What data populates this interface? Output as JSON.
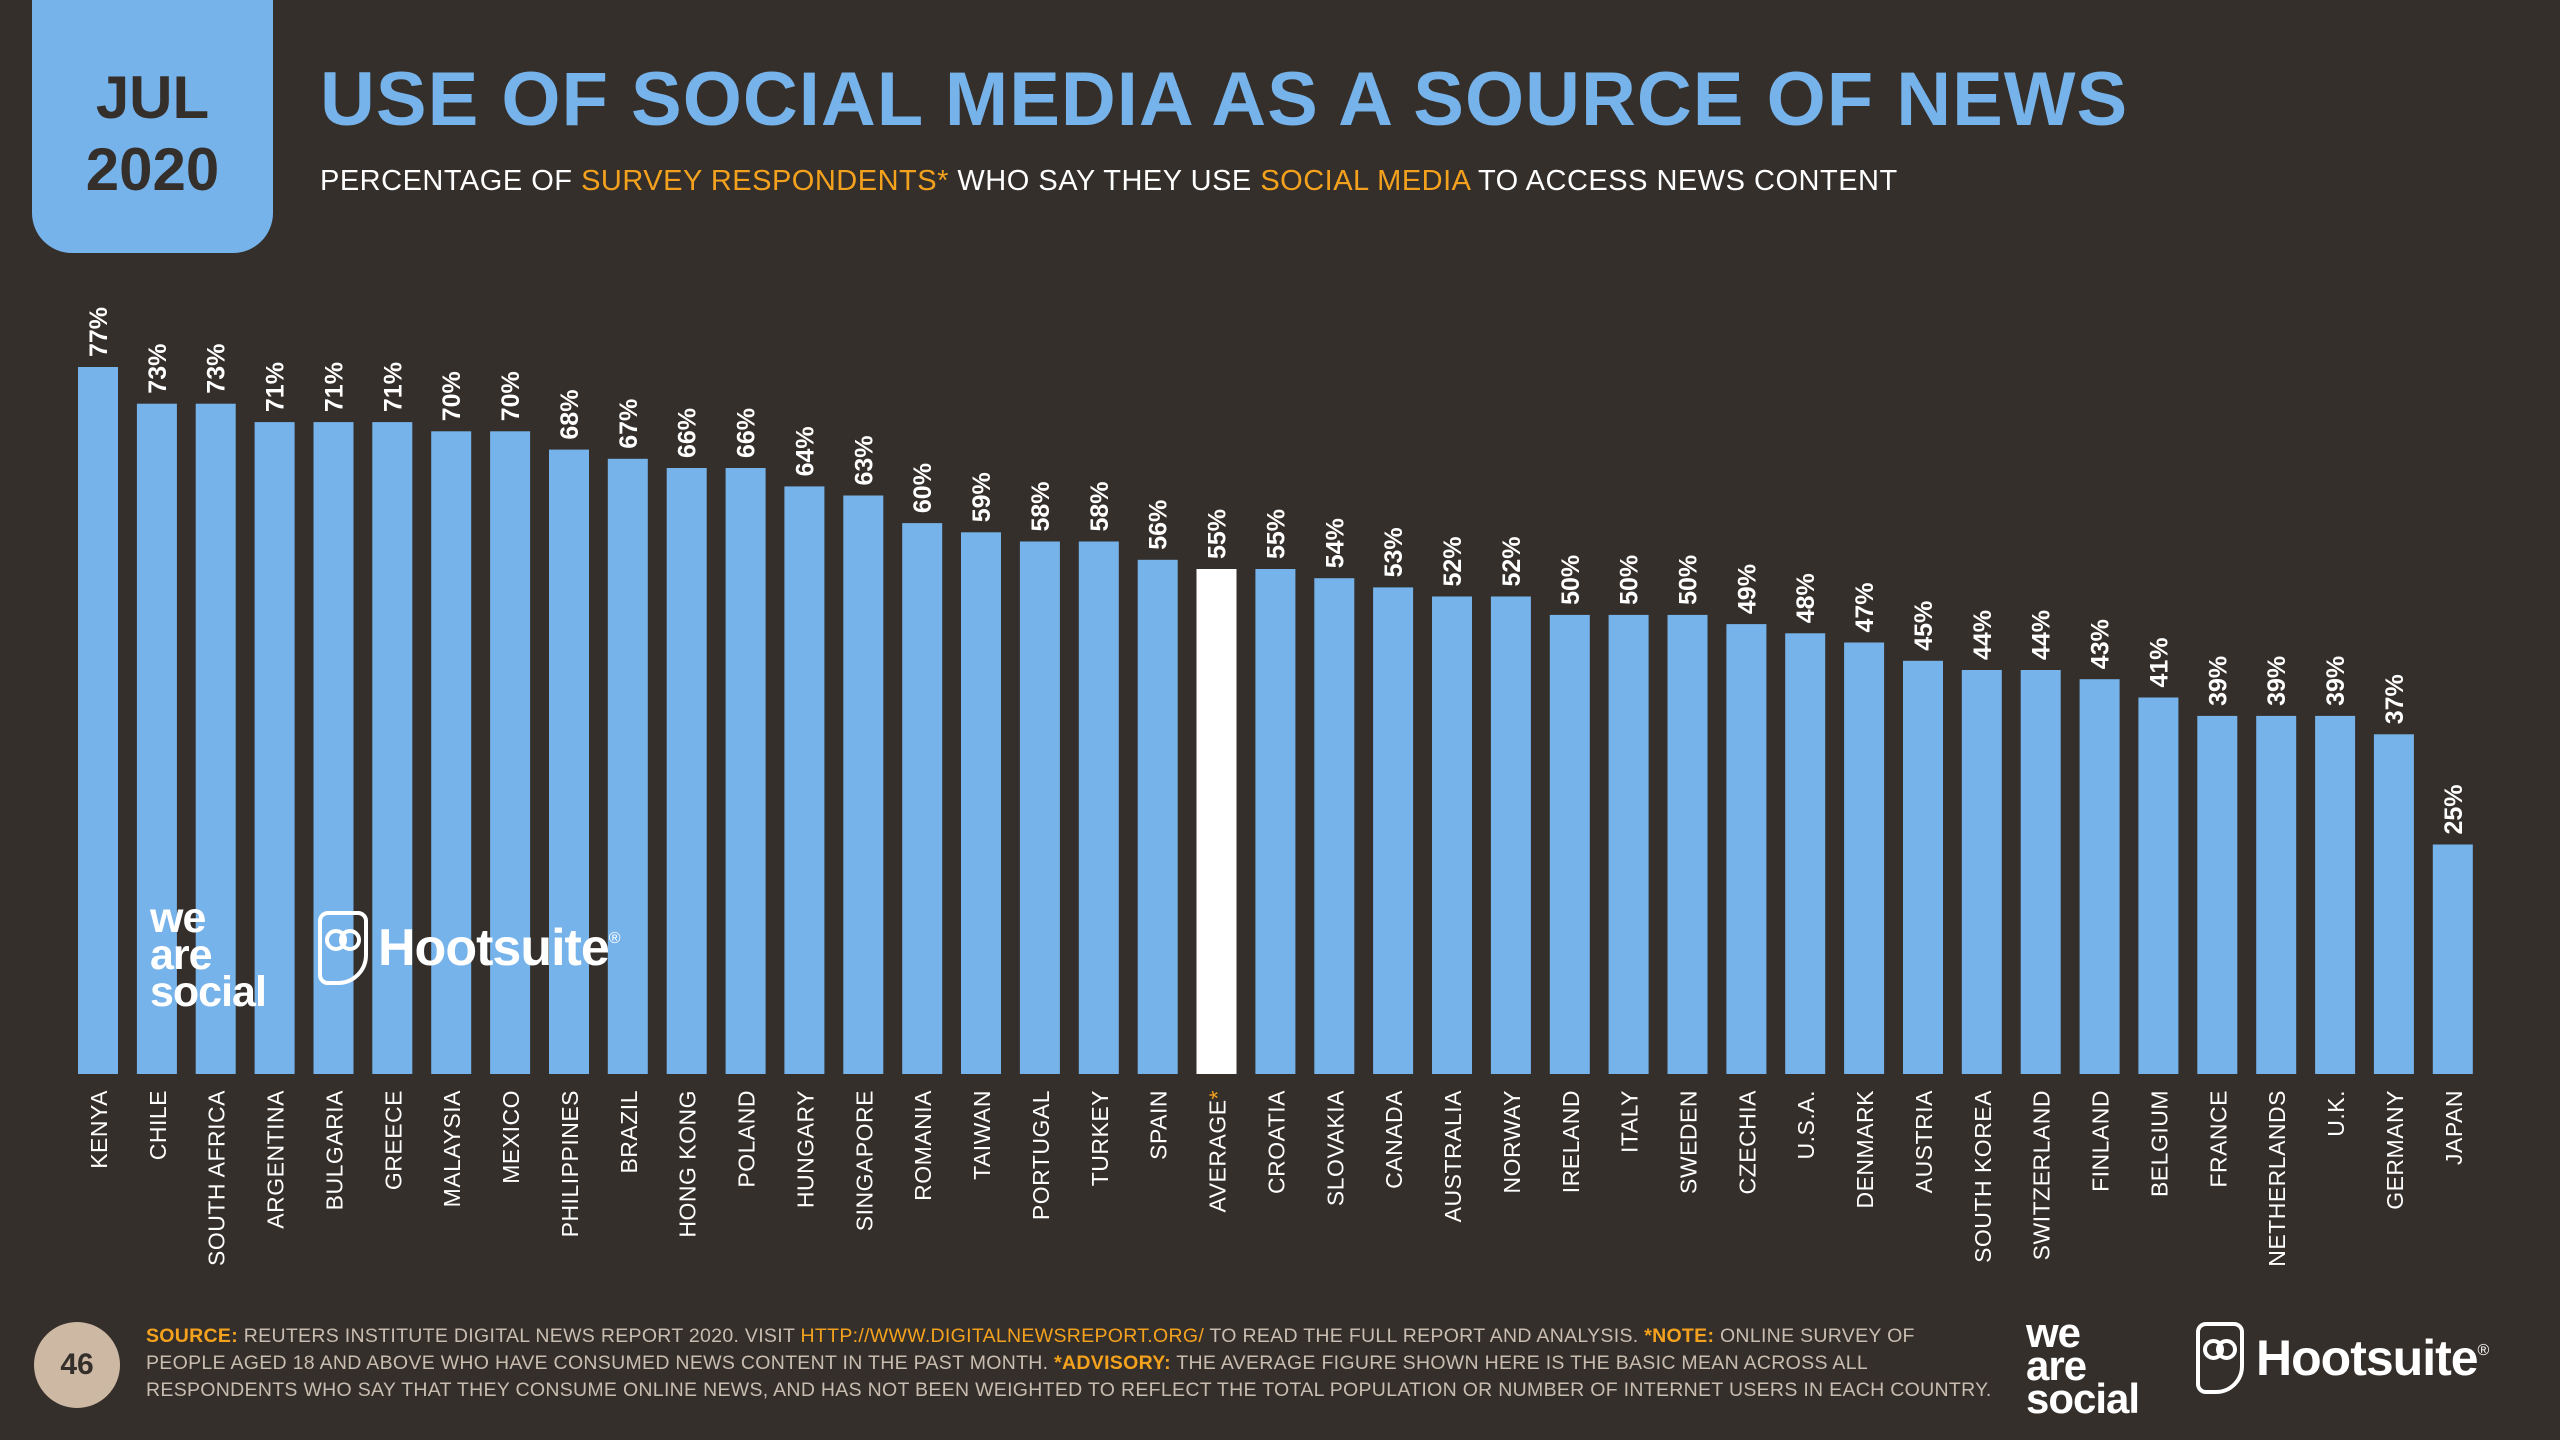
{
  "header": {
    "month": "JUL",
    "year": "2020",
    "title": "USE OF SOCIAL MEDIA AS A SOURCE OF NEWS",
    "subtitle_parts": [
      "PERCENTAGE OF ",
      "SURVEY RESPONDENTS*",
      " WHO SAY THEY USE ",
      "SOCIAL MEDIA",
      " TO ACCESS NEWS CONTENT"
    ]
  },
  "logos": {
    "we_are_social": [
      "we",
      "are",
      "social"
    ],
    "hootsuite": "Hootsuite",
    "hootsuite_mark": "®"
  },
  "footer": {
    "page_number": "46",
    "source_label": "SOURCE:",
    "source_text": " REUTERS INSTITUTE DIGITAL NEWS REPORT 2020. VISIT ",
    "source_url": "HTTP://WWW.DIGITALNEWSREPORT.ORG/",
    "source_text_2": " TO READ THE FULL REPORT AND ANALYSIS. ",
    "note_label": "*NOTE:",
    "note_text": " ONLINE SURVEY OF PEOPLE AGED 18 AND ABOVE WHO HAVE CONSUMED NEWS CONTENT IN THE PAST MONTH. ",
    "advisory_label": "*ADVISORY:",
    "advisory_text": " THE AVERAGE FIGURE SHOWN HERE IS THE BASIC MEAN ACROSS ALL RESPONDENTS WHO SAY THAT THEY CONSUME ONLINE NEWS, AND HAS NOT BEEN WEIGHTED TO REFLECT THE TOTAL POPULATION OR NUMBER OF INTERNET USERS IN EACH COUNTRY."
  },
  "colors": {
    "background": "#352f2b",
    "bar": "#76b3ea",
    "highlight_bar": "#ffffff",
    "accent": "#f4a21d",
    "label": "#ffffff"
  },
  "chart_data": {
    "type": "bar",
    "categories": [
      "KENYA",
      "CHILE",
      "SOUTH AFRICA",
      "ARGENTINA",
      "BULGARIA",
      "GREECE",
      "MALAYSIA",
      "MEXICO",
      "PHILIPPINES",
      "BRAZIL",
      "HONG KONG",
      "POLAND",
      "HUNGARY",
      "SINGAPORE",
      "ROMANIA",
      "TAIWAN",
      "PORTUGAL",
      "TURKEY",
      "SPAIN",
      "AVERAGE",
      "CROATIA",
      "SLOVAKIA",
      "CANADA",
      "AUSTRALIA",
      "NORWAY",
      "IRELAND",
      "ITALY",
      "SWEDEN",
      "CZECHIA",
      "U.S.A.",
      "DENMARK",
      "AUSTRIA",
      "SOUTH KOREA",
      "SWITZERLAND",
      "FINLAND",
      "BELGIUM",
      "FRANCE",
      "NETHERLANDS",
      "U.K.",
      "GERMANY",
      "JAPAN"
    ],
    "values": [
      77,
      73,
      73,
      71,
      71,
      71,
      70,
      70,
      68,
      67,
      66,
      66,
      64,
      63,
      60,
      59,
      58,
      58,
      56,
      55,
      55,
      54,
      53,
      52,
      52,
      50,
      50,
      50,
      49,
      48,
      47,
      45,
      44,
      44,
      43,
      41,
      39,
      39,
      39,
      37,
      25
    ],
    "value_labels": [
      "77%",
      "73%",
      "73%",
      "71%",
      "71%",
      "71%",
      "70%",
      "70%",
      "68%",
      "67%",
      "66%",
      "66%",
      "64%",
      "63%",
      "60%",
      "59%",
      "58%",
      "58%",
      "56%",
      "55%",
      "55%",
      "54%",
      "53%",
      "52%",
      "52%",
      "50%",
      "50%",
      "50%",
      "49%",
      "48%",
      "47%",
      "45%",
      "44%",
      "44%",
      "43%",
      "41%",
      "39%",
      "39%",
      "39%",
      "37%",
      "25%"
    ],
    "highlight_category": "AVERAGE",
    "highlight_marker": "*",
    "ylim": [
      0,
      77
    ],
    "grid": false,
    "legend": "none"
  }
}
